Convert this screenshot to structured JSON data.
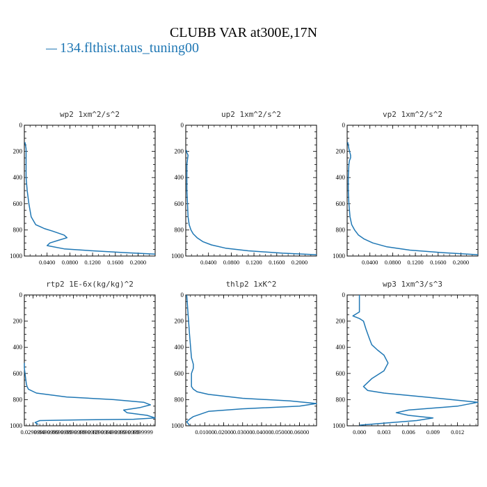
{
  "title": "CLUBB VAR at300E,17N",
  "legend": {
    "label": "134.flthist.taus_tuning00",
    "color": "#1f77b4"
  },
  "chart_data": [
    {
      "type": "line",
      "title": "wp2   1xm^2/s^2",
      "ylim": [
        0,
        1000
      ],
      "yticks": [
        0,
        200,
        400,
        600,
        800,
        1000
      ],
      "xlim": [
        0,
        0.23
      ],
      "xticks": [
        0.04,
        0.08,
        0.12,
        0.16,
        0.2
      ],
      "xticklabels": [
        "0.0400",
        "0.0800",
        "0.1200",
        "0.1600",
        "0.2000"
      ],
      "series": [
        {
          "name": "134.flthist.taus_tuning00",
          "x": [
            0.001,
            0.002,
            0.003,
            0.003,
            0.003,
            0.003,
            0.003,
            0.003,
            0.004,
            0.005,
            0.008,
            0.012,
            0.02,
            0.03,
            0.035,
            0.05,
            0.07,
            0.075,
            0.06,
            0.045,
            0.04,
            0.07,
            0.12,
            0.18,
            0.23
          ],
          "y": [
            130,
            150,
            180,
            220,
            260,
            300,
            350,
            400,
            450,
            500,
            600,
            700,
            760,
            780,
            790,
            810,
            840,
            860,
            880,
            900,
            920,
            945,
            960,
            975,
            985
          ]
        }
      ]
    },
    {
      "type": "line",
      "title": "up2   1xm^2/s^2",
      "ylim": [
        0,
        1000
      ],
      "yticks": [
        0,
        200,
        400,
        600,
        800,
        1000
      ],
      "xlim": [
        0,
        0.23
      ],
      "xticks": [
        0.04,
        0.08,
        0.12,
        0.16,
        0.2
      ],
      "xticklabels": [
        "0.0400",
        "0.0800",
        "0.1200",
        "0.1600",
        "0.2000"
      ],
      "series": [
        {
          "name": "134.flthist.taus_tuning00",
          "x": [
            0.001,
            0.002,
            0.004,
            0.003,
            0.002,
            0.002,
            0.002,
            0.003,
            0.004,
            0.006,
            0.009,
            0.013,
            0.02,
            0.03,
            0.045,
            0.07,
            0.11,
            0.17,
            0.23
          ],
          "y": [
            190,
            210,
            230,
            260,
            300,
            400,
            500,
            600,
            700,
            760,
            800,
            830,
            860,
            890,
            915,
            940,
            960,
            978,
            990
          ]
        }
      ]
    },
    {
      "type": "line",
      "title": "vp2   1xm^2/s^2",
      "ylim": [
        0,
        1000
      ],
      "yticks": [
        0,
        200,
        400,
        600,
        800,
        1000
      ],
      "xlim": [
        0,
        0.23
      ],
      "xticks": [
        0.04,
        0.08,
        0.12,
        0.16,
        0.2
      ],
      "xticklabels": [
        "0.0400",
        "0.0800",
        "0.1200",
        "0.1600",
        "0.2000"
      ],
      "series": [
        {
          "name": "134.flthist.taus_tuning00",
          "x": [
            0.001,
            0.003,
            0.006,
            0.006,
            0.004,
            0.003,
            0.002,
            0.002,
            0.003,
            0.005,
            0.008,
            0.013,
            0.02,
            0.03,
            0.045,
            0.07,
            0.11,
            0.17,
            0.23
          ],
          "y": [
            130,
            180,
            230,
            250,
            270,
            300,
            400,
            500,
            600,
            700,
            760,
            800,
            840,
            870,
            900,
            930,
            955,
            975,
            990
          ]
        }
      ]
    },
    {
      "type": "line",
      "title": "rtp2   1E-6x(kg/kg)^2",
      "ylim": [
        0,
        1000
      ],
      "yticks": [
        0,
        200,
        400,
        600,
        800,
        1000
      ],
      "xlim": [
        0.017,
        0.212
      ],
      "xticks": [
        0.03,
        0.05,
        0.07,
        0.09,
        0.11,
        0.13,
        0.15,
        0.17,
        0.19
      ],
      "xticklabels": [
        "0.0299999",
        "0.0499999",
        "0.0699999",
        "0.0899999",
        "0.1099999",
        "0.1299999",
        "0.1499999",
        "0.1699999",
        "0.1899999"
      ],
      "series": [
        {
          "name": "134.flthist.taus_tuning00",
          "x": [
            0.017,
            0.017,
            0.018,
            0.019,
            0.02,
            0.021,
            0.023,
            0.035,
            0.08,
            0.15,
            0.195,
            0.205,
            0.19,
            0.165,
            0.17,
            0.2,
            0.212,
            0.18,
            0.1,
            0.04,
            0.033,
            0.038
          ],
          "y": [
            520,
            560,
            600,
            640,
            680,
            700,
            720,
            750,
            780,
            800,
            820,
            840,
            860,
            880,
            900,
            920,
            940,
            950,
            955,
            960,
            975,
            990
          ]
        }
      ]
    },
    {
      "type": "line",
      "title": "thlp2   1xK^2",
      "ylim": [
        0,
        1000
      ],
      "yticks": [
        0,
        200,
        400,
        600,
        800,
        1000
      ],
      "xlim": [
        0,
        0.069
      ],
      "xticks": [
        0.01,
        0.02,
        0.03,
        0.04,
        0.05,
        0.06
      ],
      "xticklabels": [
        "0.01000",
        "0.02000",
        "0.03000",
        "0.04000",
        "0.05000",
        "0.06000"
      ],
      "series": [
        {
          "name": "134.flthist.taus_tuning00",
          "x": [
            0.0005,
            0.001,
            0.002,
            0.003,
            0.004,
            0.004,
            0.003,
            0.003,
            0.003,
            0.004,
            0.006,
            0.012,
            0.03,
            0.055,
            0.069,
            0.06,
            0.03,
            0.012,
            0.008,
            0.004,
            0.002,
            0.0005,
            0.002
          ],
          "y": [
            0,
            100,
            300,
            480,
            530,
            560,
            600,
            650,
            700,
            720,
            740,
            760,
            790,
            810,
            830,
            850,
            870,
            890,
            910,
            930,
            950,
            970,
            995
          ]
        }
      ]
    },
    {
      "type": "line",
      "title": "wp3   1xm^3/s^3",
      "ylim": [
        0,
        1000
      ],
      "yticks": [
        0,
        200,
        400,
        600,
        800,
        1000
      ],
      "xlim": [
        -0.0015,
        0.0145
      ],
      "xticks": [
        0.0,
        0.003,
        0.006,
        0.009,
        0.012
      ],
      "xticklabels": [
        "0.000",
        "0.003",
        "0.006",
        "0.009",
        "0.012"
      ],
      "series": [
        {
          "name": "134.flthist.taus_tuning00",
          "x": [
            0.0,
            0.0,
            0.0,
            0.0,
            -0.0008,
            0.0,
            0.0005,
            0.0008,
            0.0012,
            0.0015,
            0.0022,
            0.003,
            0.0035,
            0.003,
            0.0015,
            0.0005,
            0.001,
            0.003,
            0.008,
            0.0145,
            0.012,
            0.006,
            0.0045,
            0.006,
            0.009,
            0.007,
            0.003,
            0.0
          ],
          "y": [
            0,
            50,
            100,
            130,
            160,
            180,
            200,
            260,
            330,
            380,
            420,
            460,
            520,
            580,
            640,
            700,
            730,
            750,
            780,
            820,
            850,
            880,
            900,
            920,
            940,
            960,
            980,
            995
          ]
        }
      ]
    }
  ]
}
